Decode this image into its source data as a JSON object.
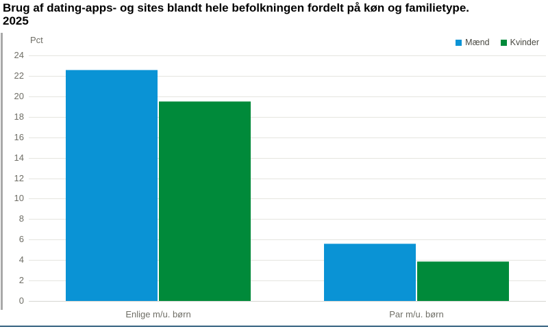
{
  "page": {
    "title_line1": "Brug af dating-apps- og sites blandt hele befolkningen fordelt på køn og familietype.",
    "title_line2": "2025"
  },
  "chart_data": {
    "type": "bar",
    "title": "Brug af dating-apps- og sites blandt hele befolkningen fordelt på køn og familietype. 2025",
    "unit_label": "Pct",
    "categories": [
      "Enlige m/u. børn",
      "Par m/u. børn"
    ],
    "series": [
      {
        "name": "Mænd",
        "color": "#0a93d5",
        "values": [
          22.6,
          5.6
        ]
      },
      {
        "name": "Kvinder",
        "color": "#008a3a",
        "values": [
          19.5,
          3.9
        ]
      }
    ],
    "ylim": [
      0,
      24
    ],
    "ytick_step": 2,
    "grid": true,
    "legend_position": "top-right"
  },
  "colors": {
    "axis_text": "#6e6d65",
    "legend_text": "#494942",
    "gridline": "#e5e5df",
    "baseline": "#d6d6d0",
    "bottom_rule": "#33617f",
    "left_rule": "#a8a8a8"
  }
}
